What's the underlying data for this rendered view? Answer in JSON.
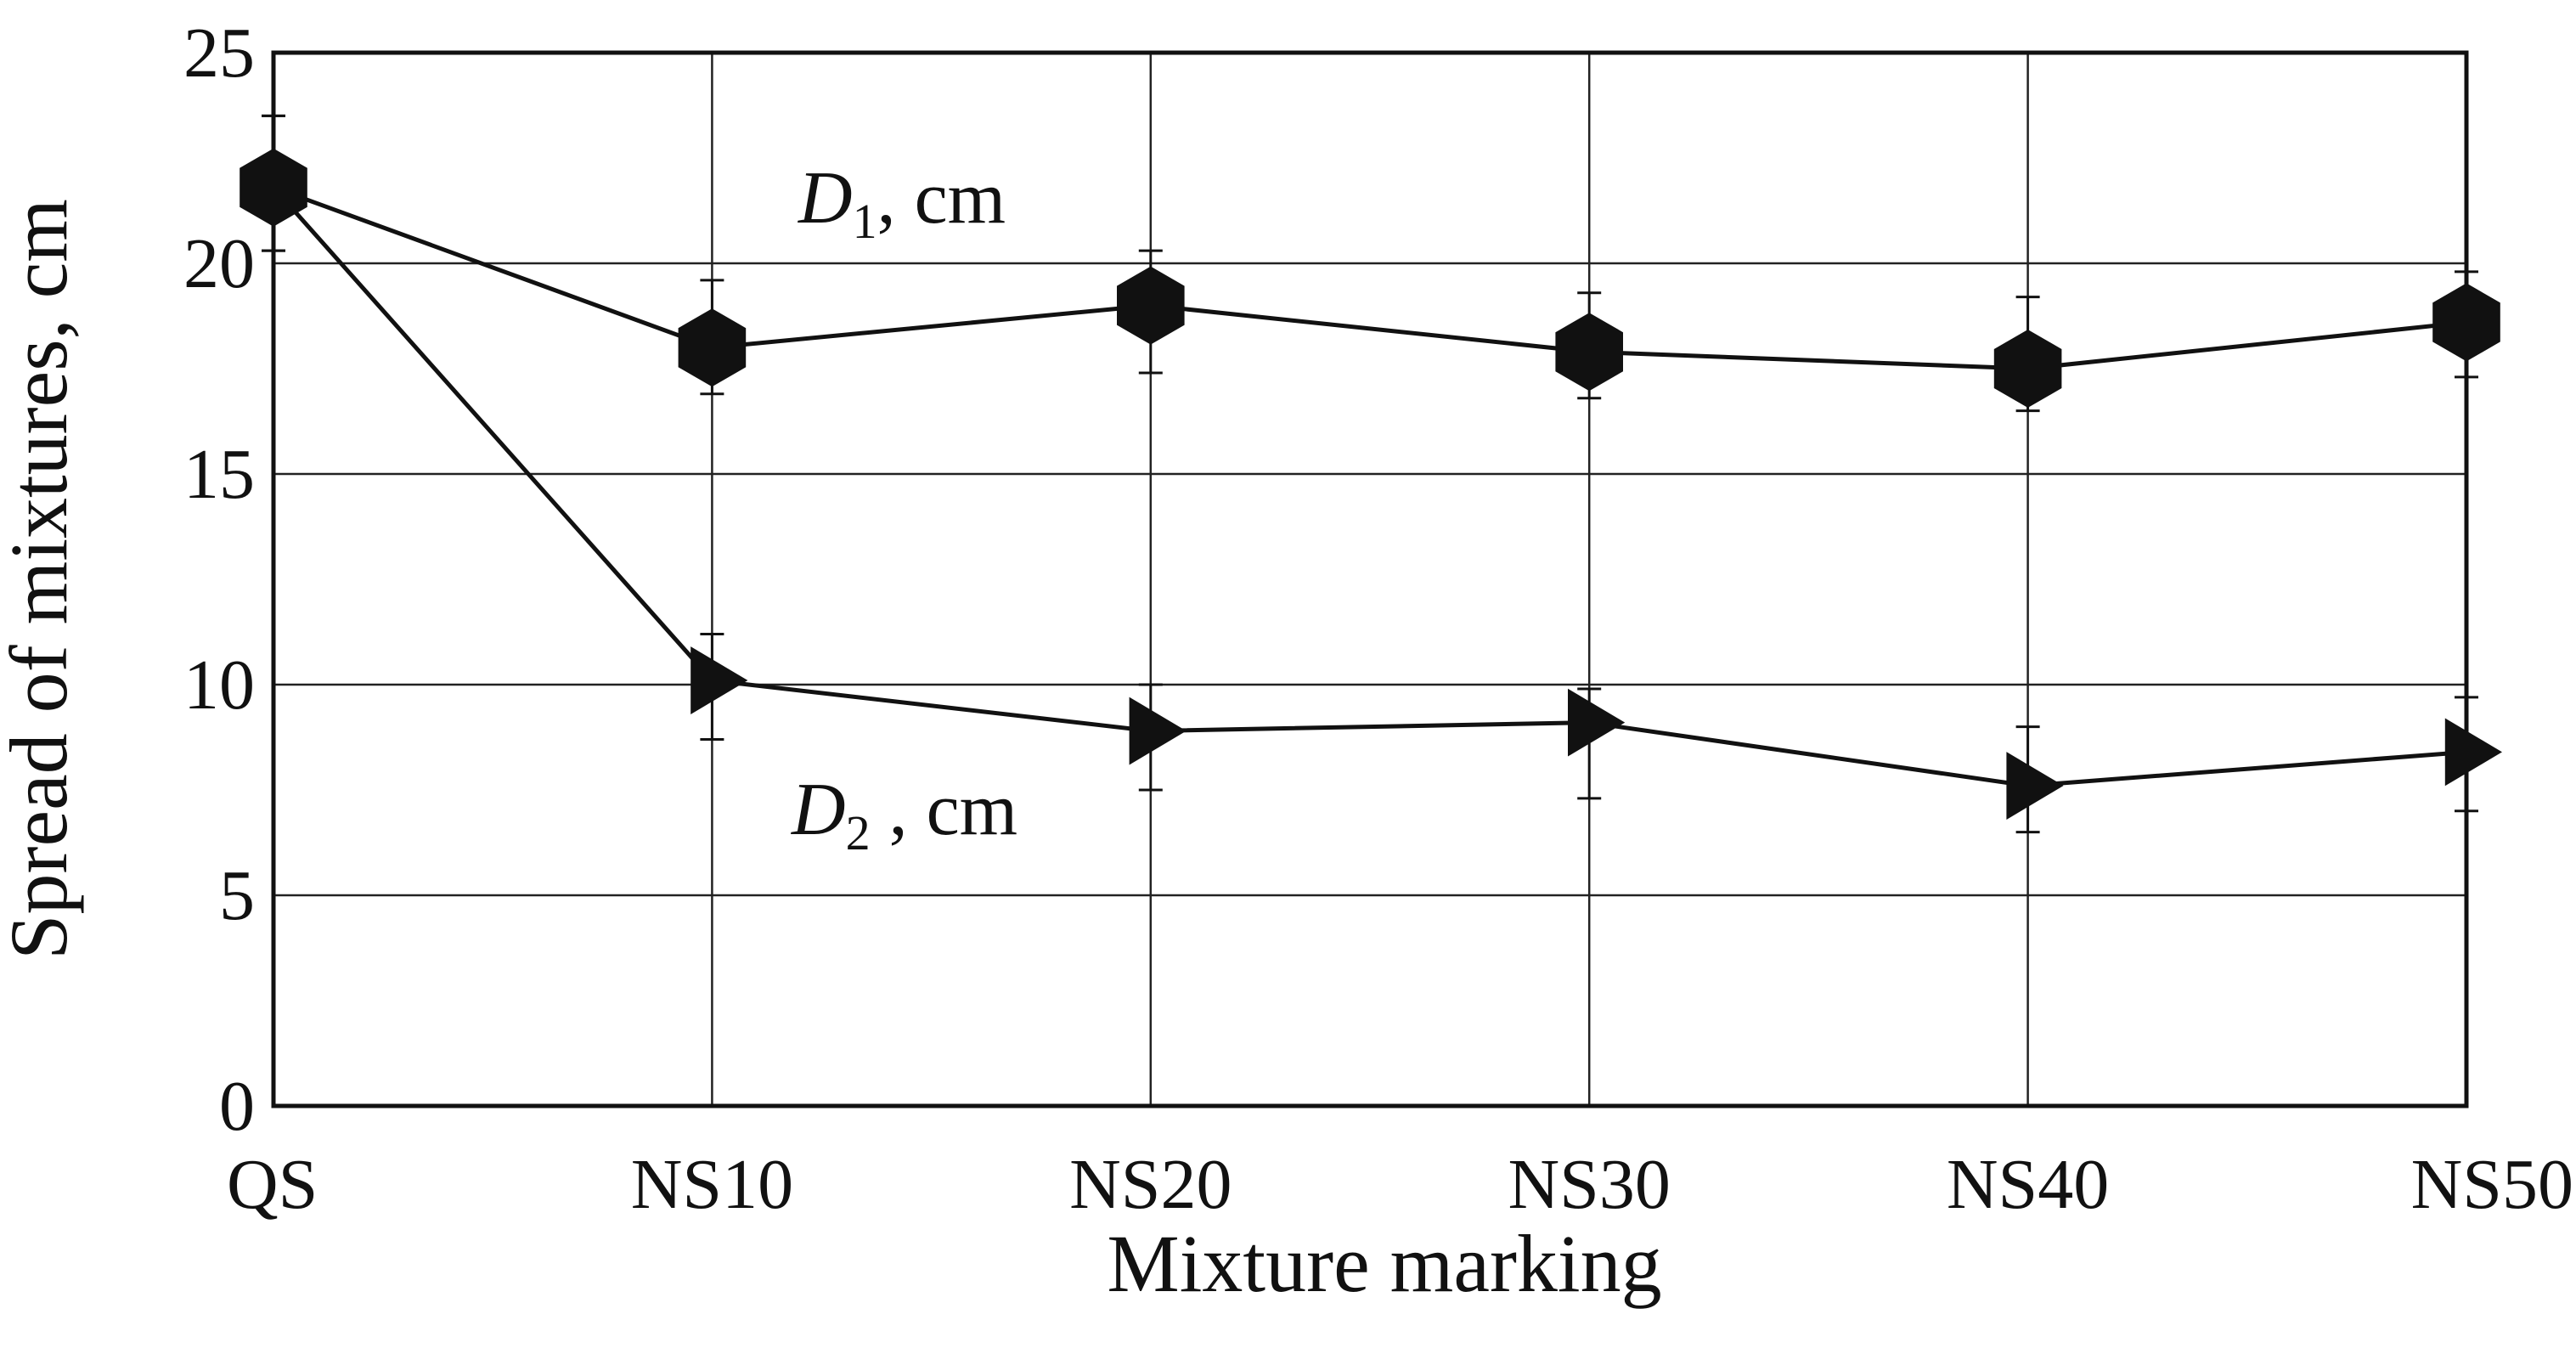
{
  "chart_data": {
    "type": "line",
    "title": "",
    "xlabel": "Mixture marking",
    "ylabel": "Spread of mixtures, cm",
    "categories": [
      "QS",
      "NS10",
      "NS20",
      "NS30",
      "NS40",
      "NS50"
    ],
    "ylim": [
      0,
      25
    ],
    "yticks": [
      0,
      5,
      10,
      15,
      20,
      25
    ],
    "grid": true,
    "series": [
      {
        "label_main": "D",
        "label_sub": "1",
        "label_rest": ", cm",
        "marker": "hexagon",
        "values": [
          21.8,
          18.0,
          19.0,
          17.9,
          17.5,
          18.6
        ],
        "err_high": [
          23.5,
          19.6,
          20.3,
          19.3,
          19.2,
          19.8
        ],
        "err_low": [
          20.3,
          16.9,
          17.4,
          16.8,
          16.5,
          17.3
        ]
      },
      {
        "label_main": "D",
        "label_sub": "2",
        "label_rest": " , cm",
        "marker": "triangle-right",
        "values": [
          21.8,
          10.1,
          8.9,
          9.1,
          7.6,
          8.4
        ],
        "err_high": [
          23.5,
          11.2,
          10.0,
          9.9,
          9.0,
          9.7
        ],
        "err_low": [
          20.3,
          8.7,
          7.5,
          7.3,
          6.5,
          7.0
        ]
      }
    ],
    "colors": {
      "line": "#111111",
      "grid": "#222222",
      "marker": "#111111"
    }
  }
}
